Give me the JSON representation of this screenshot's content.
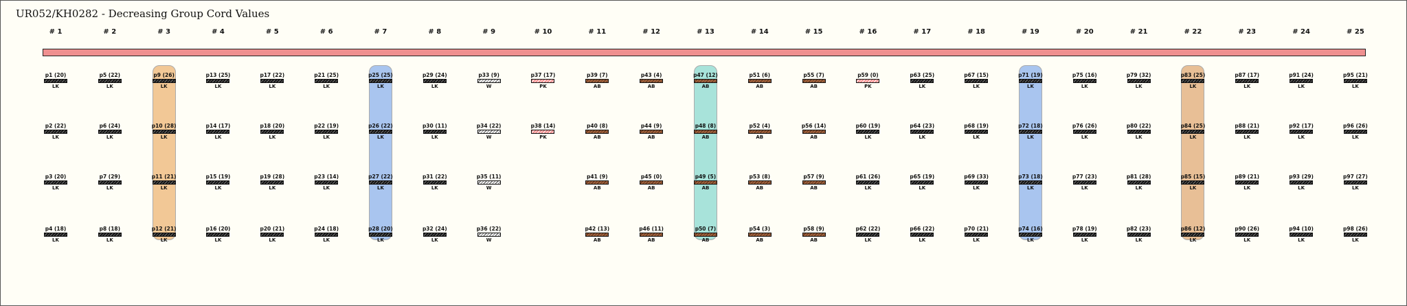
{
  "title": "UR052/KH0282 - Decreasing Group Cord Values",
  "primary_cord_color": "#ef9090",
  "swatch_styles": {
    "LK": {
      "color": "#141414",
      "pattern": "stripe",
      "stripe": "#777777"
    },
    "W": {
      "color": "#f4f4f4",
      "pattern": "stripe",
      "stripe": "#555555"
    },
    "PK": {
      "color": "#f08a8a",
      "pattern": "stripe",
      "stripe": "#ffffff"
    },
    "AB": {
      "color": "#a0623e",
      "pattern": "stripe",
      "stripe": "#5a3018"
    }
  },
  "highlight_groups": [
    {
      "group": 3,
      "color": "#f2c896"
    },
    {
      "group": 7,
      "color": "#a9c5ef"
    },
    {
      "group": 13,
      "color": "#a8e3da"
    },
    {
      "group": 19,
      "color": "#a9c5ef"
    },
    {
      "group": 22,
      "color": "#e8bf96"
    }
  ],
  "groups": [
    {
      "label": "# 1",
      "cords": [
        {
          "name": "p1 (20)",
          "color": "LK"
        },
        {
          "name": "p2 (22)",
          "color": "LK"
        },
        {
          "name": "p3 (20)",
          "color": "LK"
        },
        {
          "name": "p4 (18)",
          "color": "LK"
        }
      ]
    },
    {
      "label": "# 2",
      "cords": [
        {
          "name": "p5 (22)",
          "color": "LK"
        },
        {
          "name": "p6 (24)",
          "color": "LK"
        },
        {
          "name": "p7 (29)",
          "color": "LK"
        },
        {
          "name": "p8 (18)",
          "color": "LK"
        }
      ]
    },
    {
      "label": "# 3",
      "cords": [
        {
          "name": "p9 (26)",
          "color": "LK"
        },
        {
          "name": "p10 (28)",
          "color": "LK"
        },
        {
          "name": "p11 (21)",
          "color": "LK"
        },
        {
          "name": "p12 (21)",
          "color": "LK"
        }
      ]
    },
    {
      "label": "# 4",
      "cords": [
        {
          "name": "p13 (25)",
          "color": "LK"
        },
        {
          "name": "p14 (17)",
          "color": "LK"
        },
        {
          "name": "p15 (19)",
          "color": "LK"
        },
        {
          "name": "p16 (20)",
          "color": "LK"
        }
      ]
    },
    {
      "label": "# 5",
      "cords": [
        {
          "name": "p17 (22)",
          "color": "LK"
        },
        {
          "name": "p18 (20)",
          "color": "LK"
        },
        {
          "name": "p19 (28)",
          "color": "LK"
        },
        {
          "name": "p20 (21)",
          "color": "LK"
        }
      ]
    },
    {
      "label": "# 6",
      "cords": [
        {
          "name": "p21 (25)",
          "color": "LK"
        },
        {
          "name": "p22 (19)",
          "color": "LK"
        },
        {
          "name": "p23 (14)",
          "color": "LK"
        },
        {
          "name": "p24 (18)",
          "color": "LK"
        }
      ]
    },
    {
      "label": "# 7",
      "cords": [
        {
          "name": "p25 (25)",
          "color": "LK"
        },
        {
          "name": "p26 (22)",
          "color": "LK"
        },
        {
          "name": "p27 (22)",
          "color": "LK"
        },
        {
          "name": "p28 (20)",
          "color": "LK"
        }
      ]
    },
    {
      "label": "# 8",
      "cords": [
        {
          "name": "p29 (24)",
          "color": "LK"
        },
        {
          "name": "p30 (11)",
          "color": "LK"
        },
        {
          "name": "p31 (22)",
          "color": "LK"
        },
        {
          "name": "p32 (24)",
          "color": "LK"
        }
      ]
    },
    {
      "label": "# 9",
      "cords": [
        {
          "name": "p33 (9)",
          "color": "W"
        },
        {
          "name": "p34 (22)",
          "color": "W"
        },
        {
          "name": "p35 (11)",
          "color": "W"
        },
        {
          "name": "p36 (22)",
          "color": "W"
        }
      ]
    },
    {
      "label": "# 10",
      "cords": [
        {
          "name": "p37 (17)",
          "color": "PK"
        },
        {
          "name": "p38 (14)",
          "color": "PK"
        },
        null,
        null
      ]
    },
    {
      "label": "# 11",
      "cords": [
        {
          "name": "p39 (7)",
          "color": "AB"
        },
        {
          "name": "p40 (8)",
          "color": "AB"
        },
        {
          "name": "p41 (9)",
          "color": "AB"
        },
        {
          "name": "p42 (13)",
          "color": "AB"
        }
      ]
    },
    {
      "label": "# 12",
      "cords": [
        {
          "name": "p43 (4)",
          "color": "AB"
        },
        {
          "name": "p44 (9)",
          "color": "AB"
        },
        {
          "name": "p45 (0)",
          "color": "AB"
        },
        {
          "name": "p46 (11)",
          "color": "AB"
        }
      ]
    },
    {
      "label": "# 13",
      "cords": [
        {
          "name": "p47 (12)",
          "color": "AB"
        },
        {
          "name": "p48 (8)",
          "color": "AB"
        },
        {
          "name": "p49 (5)",
          "color": "AB"
        },
        {
          "name": "p50 (7)",
          "color": "AB"
        }
      ]
    },
    {
      "label": "# 14",
      "cords": [
        {
          "name": "p51 (6)",
          "color": "AB"
        },
        {
          "name": "p52 (4)",
          "color": "AB"
        },
        {
          "name": "p53 (8)",
          "color": "AB"
        },
        {
          "name": "p54 (3)",
          "color": "AB"
        }
      ]
    },
    {
      "label": "# 15",
      "cords": [
        {
          "name": "p55 (7)",
          "color": "AB"
        },
        {
          "name": "p56 (14)",
          "color": "AB"
        },
        {
          "name": "p57 (9)",
          "color": "AB"
        },
        {
          "name": "p58 (9)",
          "color": "AB"
        }
      ]
    },
    {
      "label": "# 16",
      "cords": [
        {
          "name": "p59 (0)",
          "color": "PK"
        },
        {
          "name": "p60 (19)",
          "color": "LK"
        },
        {
          "name": "p61 (26)",
          "color": "LK"
        },
        {
          "name": "p62 (22)",
          "color": "LK"
        }
      ]
    },
    {
      "label": "# 17",
      "cords": [
        {
          "name": "p63 (25)",
          "color": "LK"
        },
        {
          "name": "p64 (23)",
          "color": "LK"
        },
        {
          "name": "p65 (19)",
          "color": "LK"
        },
        {
          "name": "p66 (22)",
          "color": "LK"
        }
      ]
    },
    {
      "label": "# 18",
      "cords": [
        {
          "name": "p67 (15)",
          "color": "LK"
        },
        {
          "name": "p68 (19)",
          "color": "LK"
        },
        {
          "name": "p69 (33)",
          "color": "LK"
        },
        {
          "name": "p70 (21)",
          "color": "LK"
        }
      ]
    },
    {
      "label": "# 19",
      "cords": [
        {
          "name": "p71 (19)",
          "color": "LK"
        },
        {
          "name": "p72 (18)",
          "color": "LK"
        },
        {
          "name": "p73 (18)",
          "color": "LK"
        },
        {
          "name": "p74 (16)",
          "color": "LK"
        }
      ]
    },
    {
      "label": "# 20",
      "cords": [
        {
          "name": "p75 (16)",
          "color": "LK"
        },
        {
          "name": "p76 (26)",
          "color": "LK"
        },
        {
          "name": "p77 (23)",
          "color": "LK"
        },
        {
          "name": "p78 (19)",
          "color": "LK"
        }
      ]
    },
    {
      "label": "# 21",
      "cords": [
        {
          "name": "p79 (32)",
          "color": "LK"
        },
        {
          "name": "p80 (22)",
          "color": "LK"
        },
        {
          "name": "p81 (28)",
          "color": "LK"
        },
        {
          "name": "p82 (23)",
          "color": "LK"
        }
      ]
    },
    {
      "label": "# 22",
      "cords": [
        {
          "name": "p83 (25)",
          "color": "LK"
        },
        {
          "name": "p84 (25)",
          "color": "LK"
        },
        {
          "name": "p85 (15)",
          "color": "LK"
        },
        {
          "name": "p86 (12)",
          "color": "LK"
        }
      ]
    },
    {
      "label": "# 23",
      "cords": [
        {
          "name": "p87 (17)",
          "color": "LK"
        },
        {
          "name": "p88 (21)",
          "color": "LK"
        },
        {
          "name": "p89 (21)",
          "color": "LK"
        },
        {
          "name": "p90 (26)",
          "color": "LK"
        }
      ]
    },
    {
      "label": "# 24",
      "cords": [
        {
          "name": "p91 (24)",
          "color": "LK"
        },
        {
          "name": "p92 (17)",
          "color": "LK"
        },
        {
          "name": "p93 (29)",
          "color": "LK"
        },
        {
          "name": "p94 (10)",
          "color": "LK"
        }
      ]
    },
    {
      "label": "# 25",
      "cords": [
        {
          "name": "p95 (21)",
          "color": "LK"
        },
        {
          "name": "p96 (26)",
          "color": "LK"
        },
        {
          "name": "p97 (27)",
          "color": "LK"
        },
        {
          "name": "p98 (26)",
          "color": "LK"
        }
      ]
    }
  ]
}
